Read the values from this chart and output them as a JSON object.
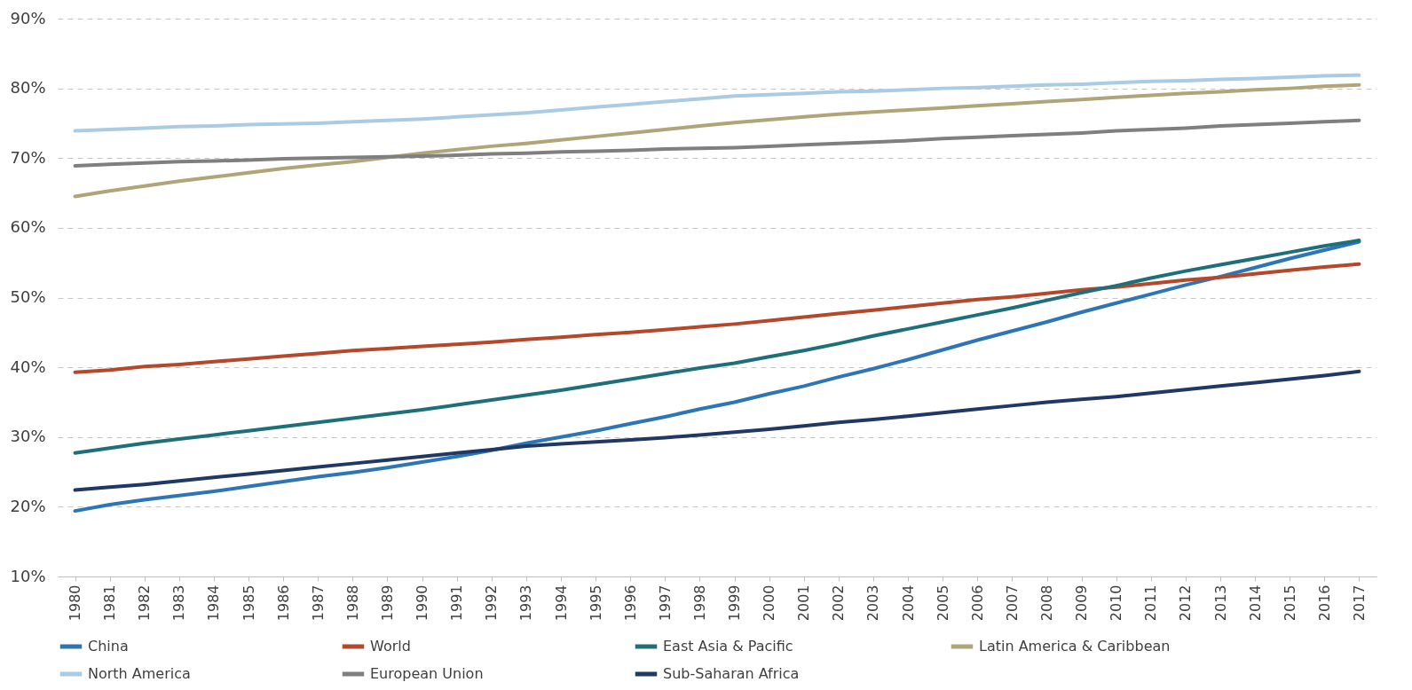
{
  "chart_data": {
    "type": "line",
    "categories": [
      "1980",
      "1981",
      "1982",
      "1983",
      "1984",
      "1985",
      "1986",
      "1987",
      "1988",
      "1989",
      "1990",
      "1991",
      "1992",
      "1993",
      "1994",
      "1995",
      "1996",
      "1997",
      "1998",
      "1999",
      "2000",
      "2001",
      "2002",
      "2003",
      "2004",
      "2005",
      "2006",
      "2007",
      "2008",
      "2009",
      "2010",
      "2011",
      "2012",
      "2013",
      "2014",
      "2015",
      "2016",
      "2017"
    ],
    "ylim": [
      10,
      90
    ],
    "yticks": [
      {
        "value": 10,
        "label": "10%"
      },
      {
        "value": 20,
        "label": "20%"
      },
      {
        "value": 30,
        "label": "30%"
      },
      {
        "value": 40,
        "label": "40%"
      },
      {
        "value": 50,
        "label": "50%"
      },
      {
        "value": 60,
        "label": "60%"
      },
      {
        "value": 70,
        "label": "70%"
      },
      {
        "value": 80,
        "label": "80%"
      },
      {
        "value": 90,
        "label": "90%"
      }
    ],
    "grid": "y",
    "legend": "bottom",
    "marker": "none",
    "line_style": "solid",
    "series": [
      {
        "name": "China",
        "color": "#2e75b6",
        "values": [
          19.4,
          20.3,
          21,
          21.6,
          22.2,
          22.9,
          23.6,
          24.3,
          24.9,
          25.6,
          26.4,
          27.2,
          28.1,
          29.1,
          30,
          30.9,
          31.9,
          32.9,
          34,
          35,
          36.2,
          37.3,
          38.6,
          39.8,
          41.1,
          42.5,
          43.9,
          45.2,
          46.5,
          47.9,
          49.2,
          50.5,
          51.8,
          53,
          54.3,
          55.6,
          56.8,
          58
        ]
      },
      {
        "name": "World",
        "color": "#b5472a",
        "values": [
          39.3,
          39.6,
          40.1,
          40.4,
          40.8,
          41.2,
          41.6,
          42,
          42.4,
          42.7,
          43,
          43.3,
          43.6,
          44,
          44.3,
          44.7,
          45,
          45.4,
          45.8,
          46.2,
          46.7,
          47.2,
          47.7,
          48.2,
          48.7,
          49.2,
          49.7,
          50.1,
          50.6,
          51.1,
          51.5,
          52,
          52.5,
          52.9,
          53.4,
          53.9,
          54.4,
          54.8
        ]
      },
      {
        "name": "East Asia & Pacific",
        "color": "#1f6f7a",
        "values": [
          27.7,
          28.4,
          29.1,
          29.7,
          30.3,
          30.9,
          31.5,
          32.1,
          32.7,
          33.3,
          33.9,
          34.6,
          35.3,
          36,
          36.7,
          37.5,
          38.3,
          39.1,
          39.9,
          40.6,
          41.5,
          42.4,
          43.4,
          44.5,
          45.5,
          46.5,
          47.5,
          48.5,
          49.6,
          50.7,
          51.7,
          52.8,
          53.8,
          54.7,
          55.6,
          56.5,
          57.4,
          58.2
        ]
      },
      {
        "name": "Latin America & Caribbean",
        "color": "#b0a479",
        "values": [
          64.5,
          65.3,
          66,
          66.7,
          67.3,
          67.9,
          68.5,
          69,
          69.5,
          70.1,
          70.7,
          71.2,
          71.7,
          72.1,
          72.6,
          73.1,
          73.6,
          74.1,
          74.6,
          75.1,
          75.5,
          75.9,
          76.3,
          76.6,
          76.9,
          77.2,
          77.5,
          77.8,
          78.1,
          78.4,
          78.7,
          79,
          79.3,
          79.5,
          79.8,
          80,
          80.3,
          80.5
        ]
      },
      {
        "name": "North America",
        "color": "#a9cbe3",
        "values": [
          73.9,
          74.1,
          74.3,
          74.5,
          74.6,
          74.8,
          74.9,
          75,
          75.2,
          75.4,
          75.6,
          75.9,
          76.2,
          76.5,
          76.9,
          77.3,
          77.7,
          78.1,
          78.5,
          78.9,
          79.1,
          79.3,
          79.5,
          79.6,
          79.8,
          80,
          80.1,
          80.3,
          80.5,
          80.6,
          80.8,
          81,
          81.1,
          81.3,
          81.4,
          81.6,
          81.8,
          81.9
        ]
      },
      {
        "name": "European Union",
        "color": "#7f7f7f",
        "values": [
          68.9,
          69.1,
          69.3,
          69.5,
          69.6,
          69.7,
          69.9,
          70,
          70.1,
          70.2,
          70.3,
          70.4,
          70.6,
          70.7,
          70.9,
          71,
          71.1,
          71.3,
          71.4,
          71.5,
          71.7,
          71.9,
          72.1,
          72.3,
          72.5,
          72.8,
          73,
          73.2,
          73.4,
          73.6,
          73.9,
          74.1,
          74.3,
          74.6,
          74.8,
          75,
          75.2,
          75.4
        ]
      },
      {
        "name": "Sub-Saharan Africa",
        "color": "#1f3864",
        "values": [
          22.4,
          22.8,
          23.2,
          23.7,
          24.2,
          24.7,
          25.2,
          25.7,
          26.2,
          26.7,
          27.2,
          27.7,
          28.2,
          28.7,
          29,
          29.3,
          29.6,
          29.9,
          30.3,
          30.7,
          31.1,
          31.6,
          32.1,
          32.5,
          33,
          33.5,
          34,
          34.5,
          35,
          35.4,
          35.8,
          36.3,
          36.8,
          37.3,
          37.8,
          38.3,
          38.8,
          39.4
        ]
      }
    ]
  }
}
